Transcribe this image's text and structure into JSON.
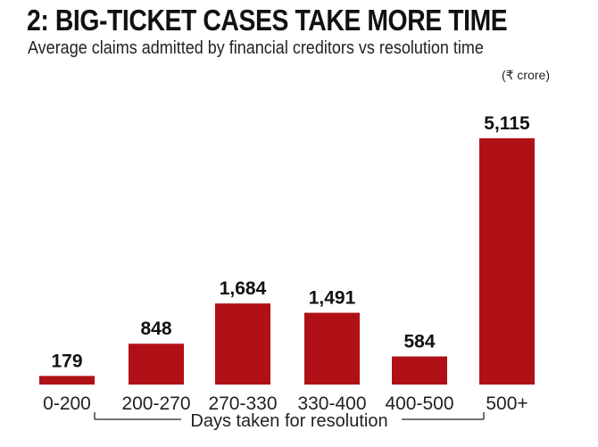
{
  "chart_data": {
    "type": "bar",
    "title": "2: BIG-TICKET CASES TAKE MORE TIME",
    "subtitle": "Average claims admitted by financial creditors vs resolution time",
    "unit": "(₹ crore)",
    "xlabel": "Days taken for resolution",
    "categories": [
      "0-200",
      "200-270",
      "270-330",
      "330-400",
      "400-500",
      "500+"
    ],
    "values": [
      179,
      848,
      1684,
      1491,
      584,
      5115
    ],
    "value_labels": [
      "179",
      "848",
      "1,684",
      "1,491",
      "584",
      "5,115"
    ],
    "ylim": [
      0,
      5115
    ],
    "grid": false,
    "legend": "none",
    "bar_color": "#B01116"
  }
}
